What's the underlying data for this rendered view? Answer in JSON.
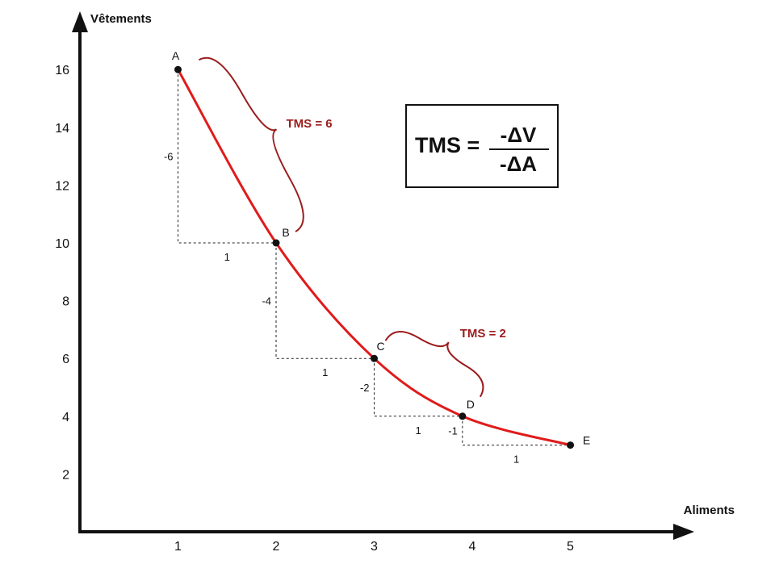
{
  "chart_data": {
    "type": "line",
    "xlabel": "Aliments",
    "ylabel": "Vêtements",
    "x_ticks": [
      "1",
      "2",
      "3",
      "4",
      "5"
    ],
    "y_ticks": [
      "2",
      "4",
      "6",
      "8",
      "10",
      "12",
      "14",
      "16"
    ],
    "xlim": [
      0,
      6.1
    ],
    "ylim": [
      0,
      18
    ],
    "grid": false,
    "curve_color": "#e01b1b",
    "annotation_color": "#9b1c1c",
    "points": [
      {
        "label": "A",
        "x": 1,
        "y": 16
      },
      {
        "label": "B",
        "x": 2,
        "y": 10
      },
      {
        "label": "C",
        "x": 3,
        "y": 6
      },
      {
        "label": "D",
        "x": 3.9,
        "y": 4
      },
      {
        "label": "E",
        "x": 5,
        "y": 3
      }
    ],
    "steps": [
      {
        "dy_label": "-6",
        "dx_label": "1"
      },
      {
        "dy_label": "-4",
        "dx_label": "1"
      },
      {
        "dy_label": "-2",
        "dx_label": "1"
      },
      {
        "dy_label": "-1",
        "dx_label": "1"
      }
    ],
    "annotations": [
      {
        "text": "TMS = 6",
        "from": "A",
        "to": "B"
      },
      {
        "text": "TMS = 2",
        "from": "C",
        "to": "D"
      }
    ]
  },
  "formula": {
    "lhs": "TMS =",
    "numerator": "-ΔV",
    "denominator": "-ΔA"
  }
}
